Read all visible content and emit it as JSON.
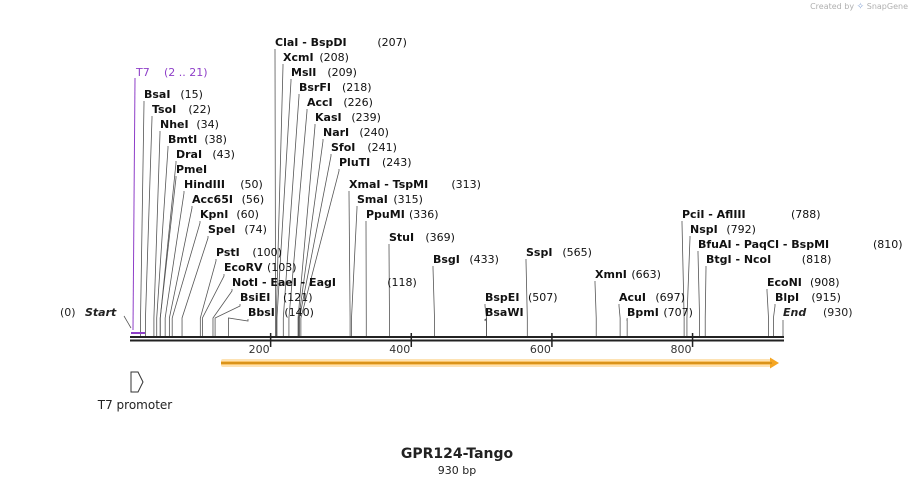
{
  "header": {
    "created_by": "Created by",
    "app_name": "SnapGene"
  },
  "title": "GPR124-Tango",
  "subtitle": "930 bp",
  "colors": {
    "backbone": "#222222",
    "enzyme_line": "#555555",
    "t7": "#8e3fc8",
    "orf_fill": "#f5a623",
    "orf_glow": "#fde2b3"
  },
  "ends": {
    "start": {
      "label": "Start",
      "position": "(0)"
    },
    "end": {
      "label": "End",
      "position": "(930)"
    }
  },
  "axis": {
    "ticks": [
      200,
      400,
      600,
      800
    ]
  },
  "primer": {
    "name": "T7",
    "range": "(2 .. 21)"
  },
  "feature": {
    "name": "T7 promoter"
  },
  "sites": [
    {
      "name": "BsaI",
      "pos": "(15)"
    },
    {
      "name": "TsoI",
      "pos": "(22)"
    },
    {
      "name": "NheI",
      "pos": "(34)"
    },
    {
      "name": "BmtI",
      "pos": "(38)"
    },
    {
      "name": "DraI",
      "pos": "(43)"
    },
    {
      "name": "PmeI",
      "pos": ""
    },
    {
      "name": "HindIII",
      "pos": "(50)"
    },
    {
      "name": "Acc65I",
      "pos": "(56)"
    },
    {
      "name": "KpnI",
      "pos": "(60)"
    },
    {
      "name": "SpeI",
      "pos": "(74)"
    },
    {
      "name": "PstI",
      "pos": "(100)"
    },
    {
      "name": "EcoRV",
      "pos": "(103)"
    },
    {
      "name": "NotI  -  EaeI  -  EagI",
      "pos": "(118)"
    },
    {
      "name": "BsiEI",
      "pos": "(121)"
    },
    {
      "name": "BbsI",
      "pos": "(140)"
    },
    {
      "name": "ClaI  -  BspDI",
      "pos": "(207)"
    },
    {
      "name": "XcmI",
      "pos": "(208)"
    },
    {
      "name": "MslI",
      "pos": "(209)"
    },
    {
      "name": "BsrFI",
      "pos": "(218)"
    },
    {
      "name": "AccI",
      "pos": "(226)"
    },
    {
      "name": "KasI",
      "pos": "(239)"
    },
    {
      "name": "NarI",
      "pos": "(240)"
    },
    {
      "name": "SfoI",
      "pos": "(241)"
    },
    {
      "name": "PluTI",
      "pos": "(243)"
    },
    {
      "name": "XmaI  -  TspMI",
      "pos": "(313)"
    },
    {
      "name": "SmaI",
      "pos": "(315)"
    },
    {
      "name": "PpuMI",
      "pos": "(336)"
    },
    {
      "name": "StuI",
      "pos": "(369)"
    },
    {
      "name": "BsgI",
      "pos": "(433)"
    },
    {
      "name": "BspEI",
      "pos": "(507)"
    },
    {
      "name": "BsaWI",
      "pos": ""
    },
    {
      "name": "SspI",
      "pos": "(565)"
    },
    {
      "name": "XmnI",
      "pos": "(663)"
    },
    {
      "name": "AcuI",
      "pos": "(697)"
    },
    {
      "name": "BpmI",
      "pos": "(707)"
    },
    {
      "name": "PciI  -  AflIII",
      "pos": "(788)"
    },
    {
      "name": "NspI",
      "pos": "(792)"
    },
    {
      "name": "BfuAI  -  PaqCI  -  BspMI",
      "pos": "(810)"
    },
    {
      "name": "BtgI  -  NcoI",
      "pos": "(818)"
    },
    {
      "name": "EcoNI",
      "pos": "(908)"
    },
    {
      "name": "BlpI",
      "pos": "(915)"
    }
  ]
}
